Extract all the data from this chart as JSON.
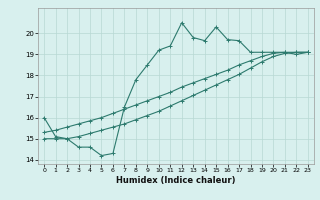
{
  "xlabel": "Humidex (Indice chaleur)",
  "ylabel": "",
  "bg_color": "#d8f0ee",
  "line_color": "#2d7a6e",
  "grid_color": "#b8d8d4",
  "xlim": [
    -0.5,
    23.5
  ],
  "ylim": [
    13.8,
    21.2
  ],
  "xticks": [
    0,
    1,
    2,
    3,
    4,
    5,
    6,
    7,
    8,
    9,
    10,
    11,
    12,
    13,
    14,
    15,
    16,
    17,
    18,
    19,
    20,
    21,
    22,
    23
  ],
  "yticks": [
    14,
    15,
    16,
    17,
    18,
    19,
    20
  ],
  "line1_x": [
    0,
    1,
    2,
    3,
    4,
    5,
    6,
    7,
    8,
    9,
    10,
    11,
    12,
    13,
    14,
    15,
    16,
    17,
    18,
    19,
    20,
    21,
    22,
    23
  ],
  "line1_y": [
    16.0,
    15.1,
    15.0,
    14.6,
    14.6,
    14.2,
    14.3,
    16.5,
    17.8,
    18.5,
    19.2,
    19.4,
    20.5,
    19.8,
    19.65,
    20.3,
    19.7,
    19.65,
    19.1,
    19.1,
    19.1,
    19.1,
    19.0,
    19.1
  ],
  "line2_x": [
    0,
    1,
    2,
    3,
    4,
    5,
    6,
    7,
    8,
    9,
    10,
    11,
    12,
    13,
    14,
    15,
    16,
    17,
    18,
    19,
    20,
    21,
    22,
    23
  ],
  "line2_y": [
    15.0,
    15.0,
    15.0,
    15.1,
    15.25,
    15.4,
    15.55,
    15.7,
    15.9,
    16.1,
    16.3,
    16.55,
    16.8,
    17.05,
    17.3,
    17.55,
    17.8,
    18.05,
    18.35,
    18.65,
    18.9,
    19.05,
    19.1,
    19.1
  ],
  "line3_x": [
    0,
    1,
    2,
    3,
    4,
    5,
    6,
    7,
    8,
    9,
    10,
    11,
    12,
    13,
    14,
    15,
    16,
    17,
    18,
    19,
    20,
    21,
    22,
    23
  ],
  "line3_y": [
    15.3,
    15.4,
    15.55,
    15.7,
    15.85,
    16.0,
    16.2,
    16.4,
    16.6,
    16.8,
    17.0,
    17.2,
    17.45,
    17.65,
    17.85,
    18.05,
    18.25,
    18.5,
    18.7,
    18.9,
    19.05,
    19.1,
    19.1,
    19.1
  ]
}
